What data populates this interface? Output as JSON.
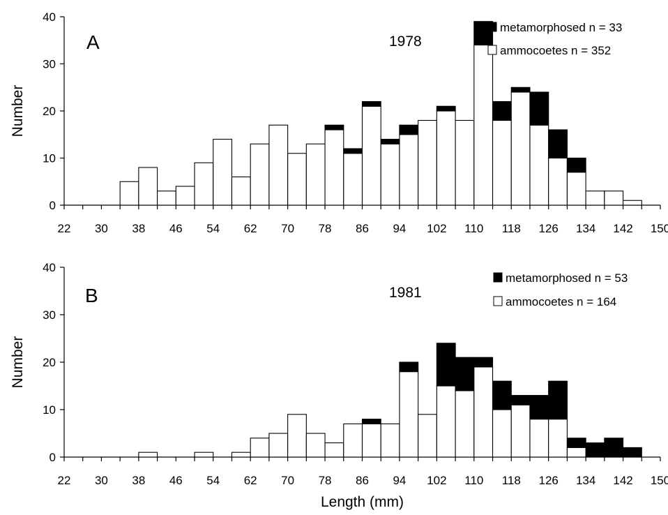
{
  "xlabel": "Length (mm)",
  "chart_data": [
    {
      "type": "bar",
      "stacked": true,
      "panel": "A",
      "year": "1978",
      "ylabel": "Number",
      "ylim": [
        0,
        40
      ],
      "yticks": [
        "0",
        "10",
        "20",
        "30",
        "40"
      ],
      "xtick_labels": [
        "22",
        "30",
        "38",
        "46",
        "54",
        "62",
        "70",
        "78",
        "86",
        "94",
        "102",
        "110",
        "118",
        "126",
        "134",
        "142",
        "150"
      ],
      "categories": [
        22,
        26,
        30,
        34,
        38,
        42,
        46,
        50,
        54,
        58,
        62,
        66,
        70,
        74,
        78,
        82,
        86,
        90,
        94,
        98,
        102,
        106,
        110,
        114,
        118,
        122,
        126,
        130,
        134,
        138,
        142,
        146
      ],
      "series": [
        {
          "name": "ammocoetes n = 352",
          "color": "#ffffff",
          "values": [
            0,
            0,
            0,
            5,
            8,
            3,
            4,
            9,
            14,
            6,
            13,
            17,
            11,
            13,
            16,
            11,
            21,
            13,
            15,
            18,
            20,
            18,
            34,
            18,
            24,
            17,
            10,
            7,
            3,
            3,
            1,
            0
          ]
        },
        {
          "name": "metamorphosed n = 33",
          "color": "#000000",
          "values": [
            0,
            0,
            0,
            0,
            0,
            0,
            0,
            0,
            0,
            0,
            0,
            0,
            0,
            0,
            1,
            1,
            1,
            1,
            2,
            0,
            1,
            0,
            5,
            4,
            1,
            7,
            6,
            3,
            0,
            0,
            0,
            0
          ]
        }
      ],
      "legend_position": "top-right"
    },
    {
      "type": "bar",
      "stacked": true,
      "panel": "B",
      "year": "1981",
      "ylabel": "Number",
      "ylim": [
        0,
        40
      ],
      "yticks": [
        "0",
        "10",
        "20",
        "30",
        "40"
      ],
      "xtick_labels": [
        "22",
        "30",
        "38",
        "46",
        "54",
        "62",
        "70",
        "78",
        "86",
        "94",
        "102",
        "110",
        "118",
        "126",
        "134",
        "142",
        "150"
      ],
      "categories": [
        22,
        26,
        30,
        34,
        38,
        42,
        46,
        50,
        54,
        58,
        62,
        66,
        70,
        74,
        78,
        82,
        86,
        90,
        94,
        98,
        102,
        106,
        110,
        114,
        118,
        122,
        126,
        130,
        134,
        138,
        142,
        146
      ],
      "series": [
        {
          "name": "ammocoetes n = 164",
          "color": "#ffffff",
          "values": [
            0,
            0,
            0,
            0,
            1,
            0,
            0,
            1,
            0,
            1,
            4,
            5,
            9,
            5,
            3,
            7,
            7,
            7,
            18,
            9,
            15,
            14,
            19,
            10,
            11,
            8,
            8,
            2,
            0,
            0,
            0,
            0
          ]
        },
        {
          "name": "metamorphosed n = 53",
          "color": "#000000",
          "values": [
            0,
            0,
            0,
            0,
            0,
            0,
            0,
            0,
            0,
            0,
            0,
            0,
            0,
            0,
            0,
            0,
            1,
            0,
            2,
            0,
            9,
            7,
            2,
            6,
            2,
            5,
            8,
            2,
            3,
            4,
            2,
            0
          ]
        }
      ],
      "legend_position": "top-right"
    }
  ]
}
